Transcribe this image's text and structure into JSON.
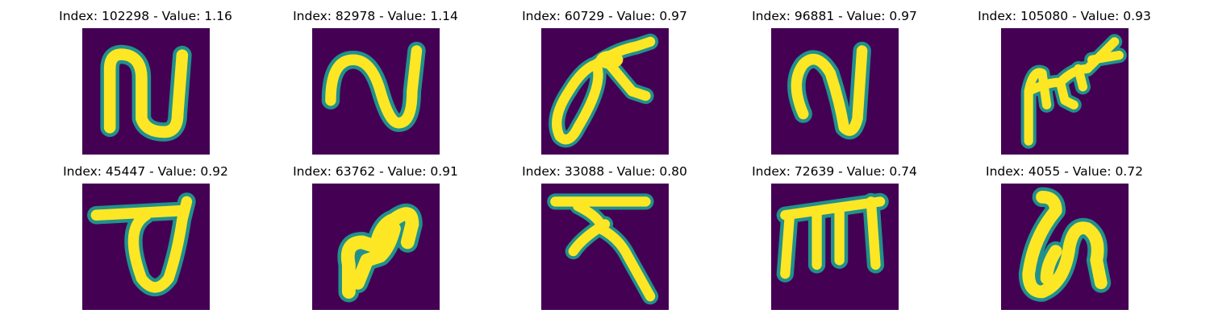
{
  "colors": {
    "background": "#440154",
    "edge": "#21918c",
    "mid": "#5ec962",
    "stroke": "#fde725"
  },
  "panels": [
    {
      "index": "102298",
      "value": "1.16",
      "title": "Index: 102298 - Value: 1.16",
      "glyph": "glyph-n-loop-icon"
    },
    {
      "index": "82978",
      "value": "1.14",
      "title": "Index: 82978 - Value: 1.14",
      "glyph": "glyph-n-wave-icon"
    },
    {
      "index": "60729",
      "value": "0.97",
      "title": "Index: 60729 - Value: 0.97",
      "glyph": "glyph-leaning-loop-icon"
    },
    {
      "index": "96881",
      "value": "0.97",
      "title": "Index: 96881 - Value: 0.97",
      "glyph": "glyph-v-loop-icon"
    },
    {
      "index": "105080",
      "value": "0.93",
      "title": "Index: 105080 - Value: 0.93",
      "glyph": "glyph-branch-icon"
    },
    {
      "index": "45447",
      "value": "0.92",
      "title": "Index: 45447 - Value: 0.92",
      "glyph": "glyph-bar-loop-icon"
    },
    {
      "index": "63762",
      "value": "0.91",
      "title": "Index: 63762 - Value: 0.91",
      "glyph": "glyph-hook-icon"
    },
    {
      "index": "33088",
      "value": "0.80",
      "title": "Index: 33088 - Value: 0.80",
      "glyph": "glyph-t-cross-icon"
    },
    {
      "index": "72639",
      "value": "0.74",
      "title": "Index: 72639 - Value: 0.74",
      "glyph": "glyph-comb-icon"
    },
    {
      "index": "4055",
      "value": "0.72",
      "title": "Index: 4055 - Value: 0.72",
      "glyph": "glyph-curl-icon"
    }
  ]
}
